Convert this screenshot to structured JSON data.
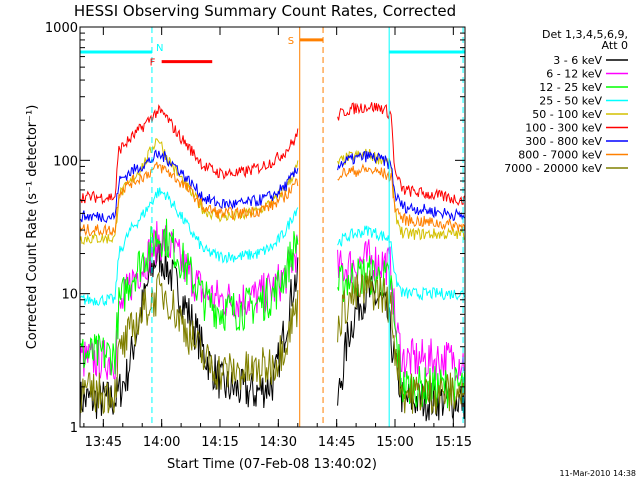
{
  "chart_data": {
    "type": "line",
    "title": "HESSI Observing Summary Count Rates, Corrected",
    "xlabel": "Start Time (07-Feb-08 13:40:02)",
    "ylabel": "Corrected Count Rate (s⁻¹ detector⁻¹)",
    "y_scale": "log",
    "ylim": [
      1,
      1000
    ],
    "xlim_minutes_after_1340": [
      -1,
      98
    ],
    "x_ticks": [
      {
        "label": "13:45",
        "minute": 5
      },
      {
        "label": "14:00",
        "minute": 20
      },
      {
        "label": "14:15",
        "minute": 35
      },
      {
        "label": "14:30",
        "minute": 50
      },
      {
        "label": "14:45",
        "minute": 65
      },
      {
        "label": "15:00",
        "minute": 80
      },
      {
        "label": "15:15",
        "minute": 95
      }
    ],
    "y_ticks": [
      {
        "label": "1",
        "value": 1
      },
      {
        "label": "10",
        "value": 10
      },
      {
        "label": "100",
        "value": 100
      },
      {
        "label": "1000",
        "value": 1000
      }
    ],
    "legend_header": [
      "Det 1,3,4,5,6,9,",
      "Att 0"
    ],
    "legend_position": "top-right, outside plot",
    "series": [
      {
        "name": "3 - 6 keV",
        "color": "#000000",
        "points": [
          [
            -1,
            1.6
          ],
          [
            8,
            1.6
          ],
          [
            11,
            2.4
          ],
          [
            14,
            6
          ],
          [
            17,
            14
          ],
          [
            19,
            20
          ],
          [
            21,
            17
          ],
          [
            24,
            11
          ],
          [
            28,
            6
          ],
          [
            31,
            3.5
          ],
          [
            36,
            2.0
          ],
          [
            44,
            1.8
          ],
          [
            49,
            2.2
          ],
          [
            52,
            6
          ],
          [
            54,
            12
          ],
          [
            55,
            13
          ],
          [
            55.2,
            null
          ],
          [
            65,
            null
          ],
          [
            65.2,
            1.5
          ],
          [
            68,
            5
          ],
          [
            71,
            9
          ],
          [
            73,
            10
          ],
          [
            76,
            9
          ],
          [
            78,
            7
          ],
          [
            80,
            3
          ],
          [
            82,
            1.6
          ],
          [
            98,
            1.6
          ]
        ]
      },
      {
        "name": "6 - 12 keV",
        "color": "#ff00ff",
        "points": [
          [
            -1,
            3.2
          ],
          [
            8,
            3.2
          ],
          [
            9,
            7
          ],
          [
            12,
            12
          ],
          [
            16,
            18
          ],
          [
            19,
            25
          ],
          [
            21,
            25
          ],
          [
            24,
            19
          ],
          [
            28,
            13
          ],
          [
            31,
            10
          ],
          [
            35,
            9
          ],
          [
            40,
            9
          ],
          [
            45,
            9.5
          ],
          [
            49,
            11
          ],
          [
            52,
            14
          ],
          [
            54,
            19
          ],
          [
            55,
            22
          ],
          [
            55.2,
            null
          ],
          [
            65,
            null
          ],
          [
            65.2,
            15
          ],
          [
            68,
            16
          ],
          [
            73,
            18
          ],
          [
            77,
            17
          ],
          [
            79,
            16
          ],
          [
            80,
            6
          ],
          [
            82,
            3.2
          ],
          [
            98,
            3.2
          ]
        ]
      },
      {
        "name": "12 - 25 keV",
        "color": "#00ff00",
        "points": [
          [
            -1,
            3.5
          ],
          [
            8,
            3.5
          ],
          [
            9,
            8
          ],
          [
            12,
            13
          ],
          [
            16,
            20
          ],
          [
            19,
            27
          ],
          [
            21,
            27
          ],
          [
            24,
            20
          ],
          [
            28,
            13
          ],
          [
            31,
            9
          ],
          [
            35,
            7.5
          ],
          [
            40,
            7.5
          ],
          [
            45,
            8.5
          ],
          [
            49,
            10
          ],
          [
            52,
            15
          ],
          [
            54,
            22
          ],
          [
            55,
            26
          ],
          [
            55.2,
            null
          ],
          [
            65,
            null
          ],
          [
            65.2,
            11
          ],
          [
            68,
            13
          ],
          [
            73,
            14
          ],
          [
            77,
            13
          ],
          [
            79,
            12
          ],
          [
            80,
            5
          ],
          [
            82,
            2.0
          ],
          [
            98,
            2.0
          ]
        ]
      },
      {
        "name": "25 - 50 keV",
        "color": "#00ffff",
        "points": [
          [
            -1,
            9
          ],
          [
            8,
            9
          ],
          [
            9,
            20
          ],
          [
            12,
            30
          ],
          [
            16,
            42
          ],
          [
            19,
            58
          ],
          [
            21,
            56
          ],
          [
            24,
            42
          ],
          [
            28,
            28
          ],
          [
            31,
            21
          ],
          [
            35,
            19
          ],
          [
            40,
            19
          ],
          [
            45,
            20
          ],
          [
            49,
            23
          ],
          [
            52,
            30
          ],
          [
            54,
            40
          ],
          [
            55,
            45
          ],
          [
            55.2,
            null
          ],
          [
            65,
            null
          ],
          [
            65.2,
            24
          ],
          [
            68,
            27
          ],
          [
            73,
            30
          ],
          [
            77,
            27
          ],
          [
            79,
            25
          ],
          [
            80,
            13
          ],
          [
            82,
            10
          ],
          [
            98,
            10
          ]
        ]
      },
      {
        "name": "50 - 100 keV",
        "color": "#d4c000",
        "points": [
          [
            -1,
            26
          ],
          [
            8,
            26
          ],
          [
            9,
            55
          ],
          [
            12,
            68
          ],
          [
            16,
            100
          ],
          [
            19,
            150
          ],
          [
            21,
            110
          ],
          [
            24,
            80
          ],
          [
            28,
            55
          ],
          [
            31,
            42
          ],
          [
            35,
            38
          ],
          [
            40,
            38
          ],
          [
            45,
            42
          ],
          [
            49,
            50
          ],
          [
            52,
            63
          ],
          [
            54,
            80
          ],
          [
            55,
            92
          ],
          [
            55.2,
            null
          ],
          [
            65,
            null
          ],
          [
            65.2,
            95
          ],
          [
            68,
            105
          ],
          [
            73,
            112
          ],
          [
            77,
            100
          ],
          [
            79,
            92
          ],
          [
            80,
            40
          ],
          [
            82,
            28
          ],
          [
            98,
            28
          ]
        ]
      },
      {
        "name": "100 - 300 keV",
        "color": "#ff0000",
        "points": [
          [
            -1,
            53
          ],
          [
            8,
            53
          ],
          [
            9,
            120
          ],
          [
            12,
            145
          ],
          [
            16,
            190
          ],
          [
            19,
            235
          ],
          [
            21,
            215
          ],
          [
            24,
            160
          ],
          [
            28,
            115
          ],
          [
            31,
            90
          ],
          [
            35,
            80
          ],
          [
            40,
            80
          ],
          [
            45,
            88
          ],
          [
            49,
            100
          ],
          [
            52,
            118
          ],
          [
            54,
            140
          ],
          [
            55,
            160
          ],
          [
            55.2,
            null
          ],
          [
            65,
            null
          ],
          [
            65.2,
            215
          ],
          [
            68,
            240
          ],
          [
            73,
            255
          ],
          [
            77,
            245
          ],
          [
            79,
            220
          ],
          [
            80,
            80
          ],
          [
            82,
            60
          ],
          [
            98,
            50
          ]
        ]
      },
      {
        "name": "300 - 800 keV",
        "color": "#0000ff",
        "points": [
          [
            -1,
            38
          ],
          [
            8,
            38
          ],
          [
            9,
            70
          ],
          [
            12,
            82
          ],
          [
            16,
            95
          ],
          [
            19,
            110
          ],
          [
            21,
            105
          ],
          [
            24,
            88
          ],
          [
            28,
            65
          ],
          [
            31,
            52
          ],
          [
            35,
            47
          ],
          [
            40,
            47
          ],
          [
            45,
            50
          ],
          [
            49,
            55
          ],
          [
            52,
            65
          ],
          [
            54,
            78
          ],
          [
            55,
            85
          ],
          [
            55.2,
            null
          ],
          [
            65,
            null
          ],
          [
            65.2,
            92
          ],
          [
            68,
            100
          ],
          [
            73,
            108
          ],
          [
            77,
            100
          ],
          [
            79,
            92
          ],
          [
            80,
            55
          ],
          [
            82,
            45
          ],
          [
            98,
            38
          ]
        ]
      },
      {
        "name": "800 - 7000 keV",
        "color": "#ff8000",
        "points": [
          [
            -1,
            30
          ],
          [
            8,
            30
          ],
          [
            9,
            58
          ],
          [
            12,
            68
          ],
          [
            16,
            78
          ],
          [
            19,
            90
          ],
          [
            21,
            85
          ],
          [
            24,
            72
          ],
          [
            28,
            56
          ],
          [
            31,
            44
          ],
          [
            35,
            40
          ],
          [
            40,
            40
          ],
          [
            45,
            42
          ],
          [
            49,
            47
          ],
          [
            52,
            55
          ],
          [
            54,
            65
          ],
          [
            55,
            70
          ],
          [
            55.2,
            null
          ],
          [
            65,
            null
          ],
          [
            65.2,
            78
          ],
          [
            68,
            82
          ],
          [
            73,
            85
          ],
          [
            77,
            80
          ],
          [
            79,
            74
          ],
          [
            80,
            45
          ],
          [
            82,
            36
          ],
          [
            98,
            32
          ]
        ]
      },
      {
        "name": "7000 - 20000 keV",
        "color": "#808000",
        "points": [
          [
            -1,
            1.8
          ],
          [
            8,
            1.8
          ],
          [
            9,
            3.5
          ],
          [
            12,
            5
          ],
          [
            16,
            8
          ],
          [
            19,
            10
          ],
          [
            21,
            10
          ],
          [
            24,
            7
          ],
          [
            28,
            4.5
          ],
          [
            31,
            3.2
          ],
          [
            35,
            2.6
          ],
          [
            44,
            2.6
          ],
          [
            49,
            3
          ],
          [
            52,
            4.5
          ],
          [
            54,
            7
          ],
          [
            55,
            8
          ],
          [
            55.2,
            null
          ],
          [
            65,
            null
          ],
          [
            65.2,
            6
          ],
          [
            68,
            9
          ],
          [
            73,
            11
          ],
          [
            77,
            10
          ],
          [
            79,
            8
          ],
          [
            80,
            4
          ],
          [
            82,
            1.8
          ],
          [
            98,
            1.8
          ]
        ]
      }
    ],
    "annotations": {
      "night_bars": [
        {
          "color": "#00ffff",
          "start_min": -1,
          "end_min": 17.5,
          "level": 650
        },
        {
          "color": "#00ffff",
          "start_min": 78.5,
          "end_min": 98,
          "level": 650
        }
      ],
      "flare_flag": {
        "label": "F",
        "color": "#ff0000",
        "start_min": 20,
        "end_min": 33,
        "level": 550
      },
      "saa_flag": {
        "label": "S",
        "color": "#ff8000",
        "start_min": 55.5,
        "end_min": 61.5,
        "level": 800
      },
      "vertical_lines": [
        {
          "color": "#00ffff",
          "minute": 17.5,
          "style": "dashed"
        },
        {
          "color": "#ff8000",
          "minute": 55.5,
          "style": "solid"
        },
        {
          "color": "#ff8000",
          "minute": 61.5,
          "style": "dashed"
        },
        {
          "color": "#00ffff",
          "minute": 78.5,
          "style": "solid"
        },
        {
          "color": "#00ffff",
          "minute": 97.5,
          "style": "dashed"
        }
      ],
      "night_label": "N"
    }
  },
  "footer_stamp": "11-Mar-2010 14:38"
}
